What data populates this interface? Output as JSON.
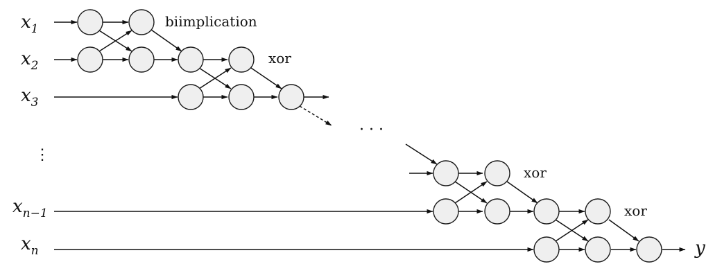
{
  "inputs": {
    "x1": {
      "base": "x",
      "sub": "1"
    },
    "x2": {
      "base": "x",
      "sub": "2"
    },
    "x3": {
      "base": "x",
      "sub": "3"
    },
    "xn1": {
      "base": "x",
      "sub": "n−1"
    },
    "xn": {
      "base": "x",
      "sub": "n"
    }
  },
  "vertical_ellipsis": "⋮",
  "horizontal_ellipsis": "· · ·",
  "gate_labels": {
    "biimplication": "biimplication",
    "xor1": "xor",
    "xor2": "xor",
    "xor3": "xor"
  },
  "output": "y",
  "colors": {
    "node_fill": "#efefef",
    "stroke": "#111111",
    "background": "#ffffff"
  }
}
